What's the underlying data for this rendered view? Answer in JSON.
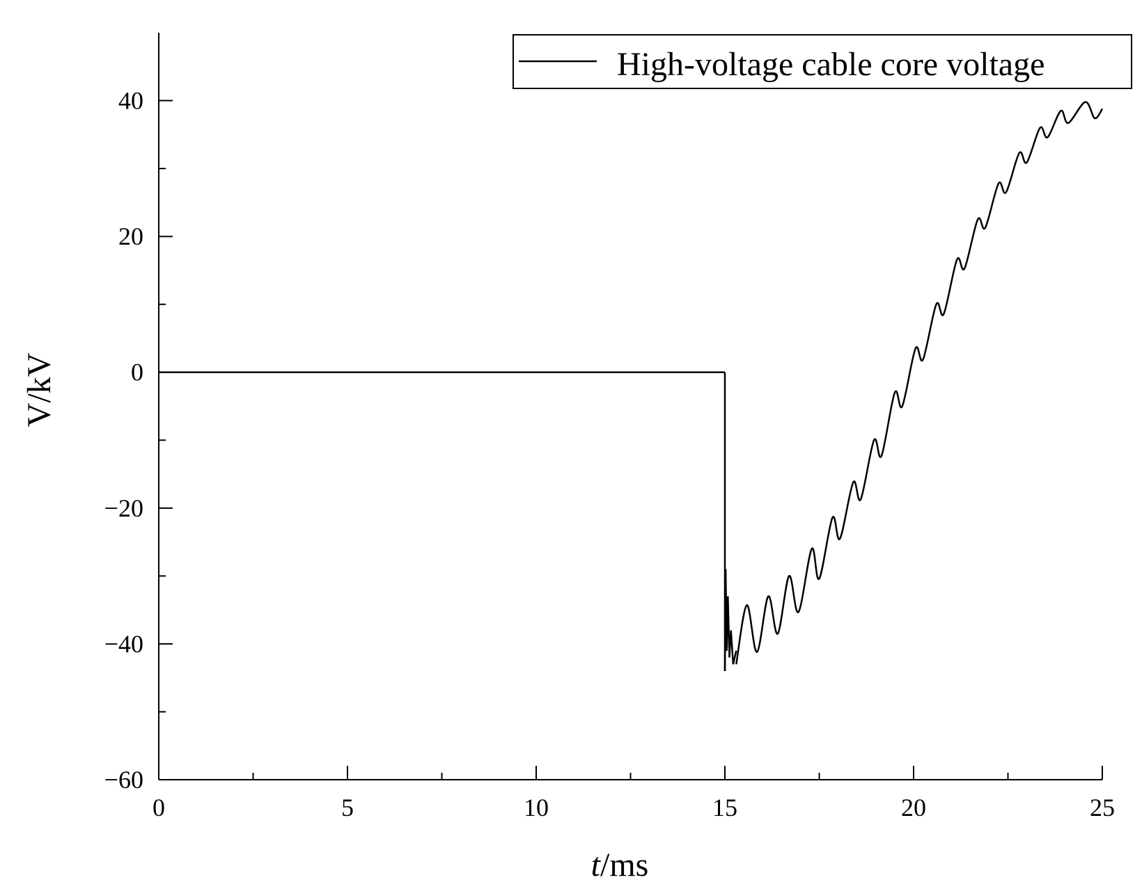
{
  "chart_data": {
    "type": "line",
    "xlabel_italic": "t",
    "xlabel_unit": "/ms",
    "ylabel": "V/kV",
    "xlim": [
      0,
      25
    ],
    "ylim": [
      -60,
      50
    ],
    "x_ticks": [
      0,
      5,
      10,
      15,
      20,
      25
    ],
    "x_tick_labels": [
      "0",
      "5",
      "10",
      "15",
      "20",
      "25"
    ],
    "x_minor_ticks": [
      2.5,
      7.5,
      12.5,
      17.5,
      22.5
    ],
    "y_ticks": [
      -60,
      -40,
      -20,
      0,
      20,
      40
    ],
    "y_tick_labels": [
      "−60",
      "−40",
      "−20",
      "0",
      "20",
      "40"
    ],
    "y_minor_ticks": [
      -50,
      -30,
      -10,
      10,
      30
    ],
    "grid": false,
    "legend_position": "top-right",
    "series": [
      {
        "name": "High-voltage cable core voltage",
        "color": "#000000",
        "segments": [
          {
            "x": [
              0,
              15.0
            ],
            "y": [
              0,
              0
            ]
          },
          {
            "x": [
              15.0,
              15.0
            ],
            "y": [
              0,
              -44
            ]
          },
          {
            "x": [
              15.0,
              15.02
            ],
            "y": [
              -44,
              -29
            ]
          },
          {
            "x": [
              15.02,
              15.05
            ],
            "y": [
              -29,
              -41
            ]
          },
          {
            "x": [
              15.05,
              15.08
            ],
            "y": [
              -41,
              -33
            ]
          },
          {
            "x": [
              15.08,
              15.12
            ],
            "y": [
              -33,
              -42
            ]
          },
          {
            "x": [
              15.12,
              15.16
            ],
            "y": [
              -42,
              -38
            ]
          },
          {
            "x": [
              15.16,
              15.22
            ],
            "y": [
              -38,
              -43
            ]
          },
          {
            "x": [
              15.22,
              15.3
            ],
            "y": [
              -43,
              -41
            ]
          }
        ],
        "x": [
          15.3,
          15.58,
          15.85,
          16.15,
          16.4,
          16.7,
          16.95,
          17.3,
          17.5,
          17.85,
          18.05,
          18.4,
          18.6,
          18.95,
          19.15,
          19.5,
          19.7,
          20.05,
          20.25,
          20.6,
          20.8,
          21.15,
          21.35,
          21.7,
          21.9,
          22.25,
          22.45,
          22.8,
          23.0,
          23.35,
          23.55,
          23.9,
          24.1,
          24.55,
          24.8,
          25.0
        ],
        "y": [
          -43,
          -34.3,
          -41.2,
          -33.0,
          -38.5,
          -30.0,
          -35.3,
          -26.0,
          -30.4,
          -21.4,
          -24.5,
          -16.2,
          -18.7,
          -10.0,
          -12.3,
          -3.0,
          -5.0,
          3.5,
          1.9,
          10.0,
          8.6,
          16.6,
          15.3,
          22.5,
          21.3,
          27.8,
          26.5,
          32.3,
          30.9,
          36.0,
          34.6,
          38.5,
          36.7,
          39.8,
          37.4,
          38.8
        ]
      }
    ]
  }
}
